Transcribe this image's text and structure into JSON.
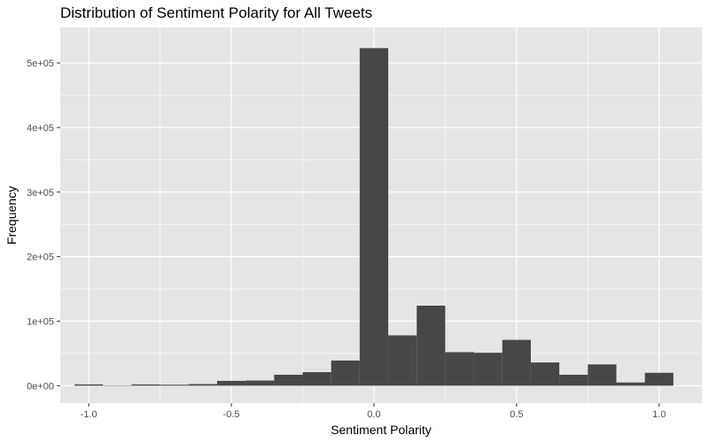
{
  "chart_data": {
    "type": "bar",
    "title": "Distribution of Sentiment Polarity for All Tweets",
    "xlabel": "Sentiment Polarity",
    "ylabel": "Frequency",
    "xlim": [
      -1.1,
      1.15
    ],
    "ylim": [
      -27000,
      555000
    ],
    "x_ticks": [
      -1.0,
      -0.5,
      0.0,
      0.5,
      1.0
    ],
    "x_tick_labels": [
      "-1.0",
      "-0.5",
      "0.0",
      "0.5",
      "1.0"
    ],
    "y_ticks": [
      0,
      100000,
      200000,
      300000,
      400000,
      500000
    ],
    "y_tick_labels": [
      "0e+00",
      "1e+05",
      "2e+05",
      "3e+05",
      "4e+05",
      "5e+05"
    ],
    "bin_width": 0.1,
    "bin_centers": [
      -1.0,
      -0.9,
      -0.8,
      -0.7,
      -0.6,
      -0.5,
      -0.4,
      -0.3,
      -0.2,
      -0.1,
      0.0,
      0.1,
      0.2,
      0.3,
      0.4,
      0.5,
      0.6,
      0.7,
      0.8,
      0.9,
      1.0
    ],
    "values": [
      2000,
      500,
      2000,
      1500,
      2500,
      7500,
      8000,
      17000,
      21000,
      39000,
      523000,
      78000,
      124000,
      52000,
      51000,
      71000,
      36000,
      17000,
      33000,
      5000,
      20000
    ],
    "grid": true,
    "bar_color": "#474747",
    "panel_color": "#e5e5e5",
    "grid_color": "#ffffff"
  }
}
